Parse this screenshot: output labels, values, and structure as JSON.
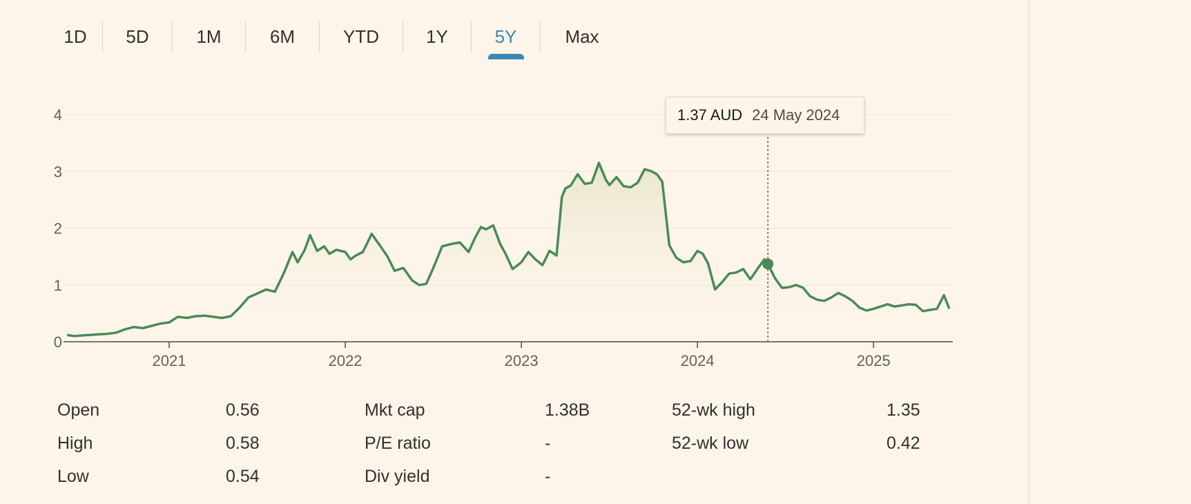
{
  "tabs": [
    {
      "label": "1D",
      "active": false
    },
    {
      "label": "5D",
      "active": false
    },
    {
      "label": "1M",
      "active": false
    },
    {
      "label": "6M",
      "active": false
    },
    {
      "label": "YTD",
      "active": false
    },
    {
      "label": "1Y",
      "active": false
    },
    {
      "label": "5Y",
      "active": true
    },
    {
      "label": "Max",
      "active": false
    }
  ],
  "tooltip": {
    "price": "1.37 AUD",
    "date": "24 May 2024"
  },
  "stats": {
    "open_label": "Open",
    "open": "0.56",
    "high_label": "High",
    "high": "0.58",
    "low_label": "Low",
    "low": "0.54",
    "mktcap_label": "Mkt cap",
    "mktcap": "1.38B",
    "pe_label": "P/E ratio",
    "pe": "-",
    "div_label": "Div yield",
    "div": "-",
    "wk52high_label": "52-wk high",
    "wk52high": "1.35",
    "wk52low_label": "52-wk low",
    "wk52low": "0.42"
  },
  "colors": {
    "line": "#4a8a58",
    "accent": "#3d86b4",
    "background": "#fdf5e9"
  },
  "chart_data": {
    "type": "line",
    "title": "",
    "xlabel": "",
    "ylabel": "",
    "ylim": [
      0,
      4
    ],
    "yticks": [
      0,
      1,
      2,
      3,
      4
    ],
    "xticks": [
      "2021",
      "2022",
      "2023",
      "2024",
      "2025"
    ],
    "xlim": [
      2020.4,
      2025.45
    ],
    "grid": true,
    "highlight": {
      "x": 2024.4,
      "y": 1.37,
      "label": "1.37 AUD 24 May 2024"
    },
    "series": [
      {
        "x": [
          2020.42,
          2020.46,
          2020.5,
          2020.55,
          2020.6,
          2020.65,
          2020.7,
          2020.75,
          2020.8,
          2020.85,
          2020.9,
          2020.95,
          2021.0,
          2021.05,
          2021.1,
          2021.15,
          2021.2,
          2021.25,
          2021.3,
          2021.35,
          2021.4,
          2021.45,
          2021.5,
          2021.55,
          2021.6,
          2021.65,
          2021.7,
          2021.73,
          2021.77,
          2021.8,
          2021.84,
          2021.88,
          2021.91,
          2021.95,
          2022.0,
          2022.03,
          2022.06,
          2022.1,
          2022.15,
          2022.2,
          2022.24,
          2022.28,
          2022.33,
          2022.38,
          2022.42,
          2022.46,
          2022.5,
          2022.55,
          2022.6,
          2022.65,
          2022.68,
          2022.7,
          2022.74,
          2022.77,
          2022.8,
          2022.84,
          2022.88,
          2022.91,
          2022.95,
          2023.0,
          2023.04,
          2023.08,
          2023.12,
          2023.16,
          2023.2,
          2023.23,
          2023.25,
          2023.28,
          2023.32,
          2023.36,
          2023.4,
          2023.44,
          2023.48,
          2023.5,
          2023.54,
          2023.58,
          2023.62,
          2023.66,
          2023.7,
          2023.74,
          2023.77,
          2023.8,
          2023.84,
          2023.88,
          2023.92,
          2023.96,
          2024.0,
          2024.03,
          2024.06,
          2024.1,
          2024.14,
          2024.18,
          2024.22,
          2024.26,
          2024.3,
          2024.34,
          2024.38,
          2024.4,
          2024.44,
          2024.48,
          2024.52,
          2024.56,
          2024.6,
          2024.64,
          2024.68,
          2024.72,
          2024.76,
          2024.8,
          2024.84,
          2024.88,
          2024.92,
          2024.96,
          2025.0,
          2025.04,
          2025.08,
          2025.12,
          2025.16,
          2025.2,
          2025.24,
          2025.28,
          2025.32,
          2025.36,
          2025.4,
          2025.43
        ],
        "y": [
          0.12,
          0.1,
          0.11,
          0.12,
          0.13,
          0.14,
          0.16,
          0.22,
          0.26,
          0.24,
          0.28,
          0.32,
          0.34,
          0.44,
          0.42,
          0.45,
          0.46,
          0.44,
          0.42,
          0.45,
          0.6,
          0.78,
          0.85,
          0.92,
          0.88,
          1.2,
          1.58,
          1.4,
          1.62,
          1.88,
          1.6,
          1.68,
          1.55,
          1.62,
          1.58,
          1.45,
          1.52,
          1.58,
          1.9,
          1.68,
          1.5,
          1.25,
          1.3,
          1.08,
          1.0,
          1.02,
          1.3,
          1.68,
          1.72,
          1.75,
          1.65,
          1.58,
          1.85,
          2.02,
          1.98,
          2.05,
          1.72,
          1.55,
          1.28,
          1.4,
          1.58,
          1.45,
          1.35,
          1.6,
          1.52,
          2.55,
          2.7,
          2.75,
          2.95,
          2.78,
          2.8,
          3.15,
          2.85,
          2.76,
          2.9,
          2.74,
          2.72,
          2.8,
          3.04,
          3.0,
          2.95,
          2.82,
          1.7,
          1.48,
          1.4,
          1.42,
          1.6,
          1.55,
          1.38,
          0.92,
          1.05,
          1.2,
          1.22,
          1.28,
          1.1,
          1.28,
          1.45,
          1.37,
          1.12,
          0.95,
          0.96,
          1.0,
          0.95,
          0.8,
          0.74,
          0.72,
          0.78,
          0.86,
          0.8,
          0.72,
          0.6,
          0.55,
          0.58,
          0.62,
          0.66,
          0.62,
          0.64,
          0.66,
          0.65,
          0.54,
          0.56,
          0.58,
          0.82,
          0.58
        ]
      }
    ]
  }
}
